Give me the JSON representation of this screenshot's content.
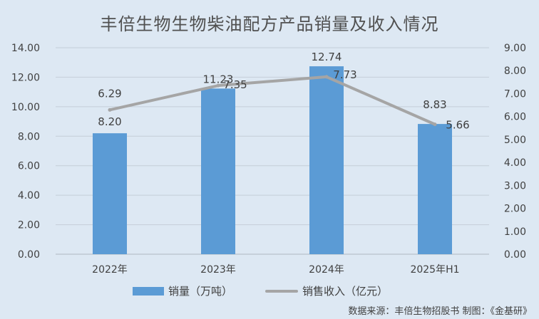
{
  "chart_data": {
    "type": "bar+line",
    "title": "丰倍生物生物柴油配方产品销量及收入情况",
    "categories": [
      "2022年",
      "2023年",
      "2024年",
      "2025年H1"
    ],
    "series": [
      {
        "name": "销量（万吨）",
        "type": "bar",
        "axis": "left",
        "color": "#5b9bd5",
        "values": [
          8.2,
          11.23,
          12.74,
          8.83
        ],
        "labels": [
          "8.20",
          "11.23",
          "12.74",
          "8.83"
        ]
      },
      {
        "name": "销售收入（亿元）",
        "type": "line",
        "axis": "right",
        "color": "#a5a5a5",
        "values": [
          6.29,
          7.35,
          7.73,
          5.66
        ],
        "labels": [
          "6.29",
          "7.35",
          "7.73",
          "5.66"
        ]
      }
    ],
    "y_left": {
      "lim": [
        0,
        14
      ],
      "ticks": [
        "0.00",
        "2.00",
        "4.00",
        "6.00",
        "8.00",
        "10.00",
        "12.00",
        "14.00"
      ]
    },
    "y_right": {
      "lim": [
        0,
        9
      ],
      "ticks": [
        "0.00",
        "1.00",
        "2.00",
        "3.00",
        "4.00",
        "5.00",
        "6.00",
        "7.00",
        "8.00",
        "9.00"
      ]
    },
    "grid": true,
    "legend": "bottom",
    "source": "数据来源：丰倍生物招股书   制图：《金基研》"
  }
}
